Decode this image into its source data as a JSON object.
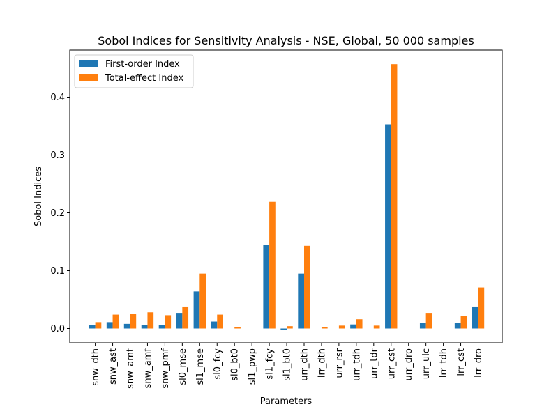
{
  "chart_data": {
    "type": "bar",
    "title": "Sobol Indices for Sensitivity Analysis - NSE, Global, 50 000 samples",
    "xlabel": "Parameters",
    "ylabel": "Sobol Indices",
    "ylim": [
      -0.025,
      0.48
    ],
    "yticks": [
      0.0,
      0.1,
      0.2,
      0.3,
      0.4
    ],
    "ytick_labels": [
      "0.0",
      "0.1",
      "0.2",
      "0.3",
      "0.4"
    ],
    "grid": false,
    "legend_position": "top-left",
    "categories": [
      "snw_dth",
      "snw_ast",
      "snw_amt",
      "snw_amf",
      "snw_pmf",
      "sl0_mse",
      "sl1_mse",
      "sl0_fcy",
      "sl0_bt0",
      "sl1_pwp",
      "sl1_fcy",
      "sl1_bt0",
      "urr_dth",
      "lrr_dth",
      "urr_rsr",
      "urr_tdh",
      "urr_tdr",
      "urr_cst",
      "urr_dro",
      "urr_ulc",
      "lrr_tdh",
      "lrr_cst",
      "lrr_dro"
    ],
    "series": [
      {
        "name": "First-order Index",
        "color": "#1f77b4",
        "values": [
          0.006,
          0.011,
          0.008,
          0.006,
          0.006,
          0.027,
          0.064,
          0.012,
          0.0,
          0.0,
          0.145,
          -0.002,
          0.095,
          0.0,
          0.0,
          0.007,
          0.0,
          0.353,
          0.0,
          0.01,
          0.0,
          0.01,
          0.038
        ]
      },
      {
        "name": "Total-effect Index",
        "color": "#ff7f0e",
        "values": [
          0.011,
          0.024,
          0.025,
          0.028,
          0.023,
          0.038,
          0.095,
          0.024,
          0.002,
          0.0,
          0.219,
          0.004,
          0.143,
          0.003,
          0.005,
          0.016,
          0.005,
          0.457,
          0.0,
          0.027,
          0.0,
          0.022,
          0.071
        ]
      }
    ]
  }
}
